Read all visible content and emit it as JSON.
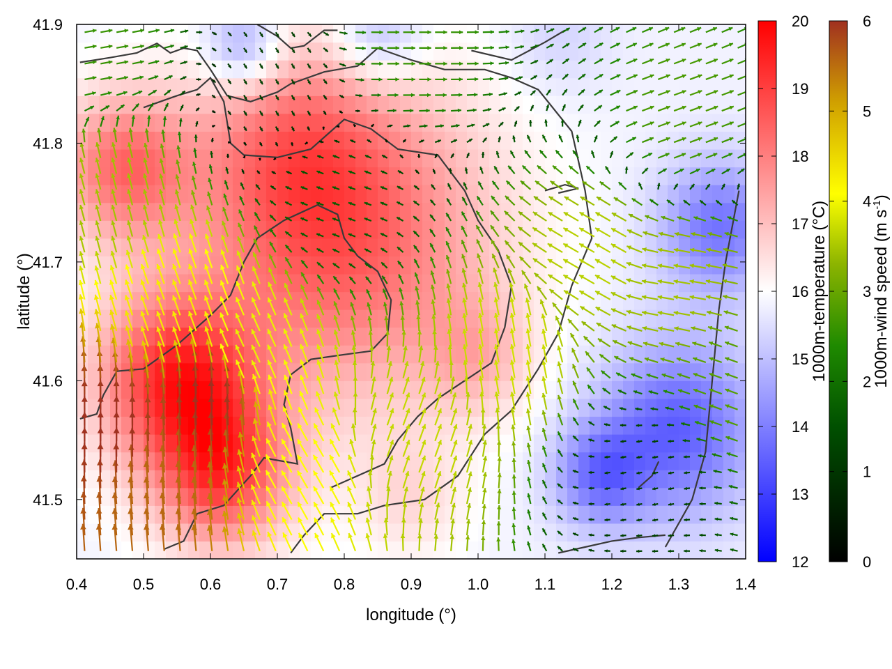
{
  "chart_data": {
    "type": "heatmap",
    "xlabel": "longitude (°)",
    "ylabel": "latitude (°)",
    "xlim": [
      0.4,
      1.4
    ],
    "ylim": [
      41.45,
      41.9
    ],
    "x_ticks": [
      "0.4",
      "0.5",
      "0.6",
      "0.7",
      "0.8",
      "0.9",
      "1.0",
      "1.1",
      "1.2",
      "1.3",
      "1.4"
    ],
    "y_ticks": [
      "41.5",
      "41.6",
      "41.7",
      "41.8",
      "41.9"
    ],
    "temperature_colorbar": {
      "label": "1000m-temperature (°C)",
      "range": [
        12,
        20
      ],
      "ticks": [
        "12",
        "13",
        "14",
        "15",
        "16",
        "17",
        "18",
        "19",
        "20"
      ],
      "colors": [
        "#0000ff",
        "#ffffff",
        "#ff0000"
      ]
    },
    "windspeed_colorbar": {
      "label_main": "1000m-wind speed (m s",
      "label_sup": "-1",
      "label_end": ")",
      "range": [
        0,
        6
      ],
      "ticks": [
        "0",
        "1",
        "2",
        "3",
        "4",
        "5",
        "6"
      ],
      "colors": [
        "#000000",
        "#005000",
        "#1f8a00",
        "#8cb400",
        "#ffff00",
        "#d0a000",
        "#a03020"
      ]
    },
    "temperature_field": [
      {
        "lon": 0.8,
        "lat": 41.72,
        "temp": 18.5,
        "spread": 0.22
      },
      {
        "lon": 0.55,
        "lat": 41.6,
        "temp": 19.2,
        "spread": 0.12
      },
      {
        "lon": 0.47,
        "lat": 41.78,
        "temp": 18.2,
        "spread": 0.1
      },
      {
        "lon": 0.62,
        "lat": 41.52,
        "temp": 18.6,
        "spread": 0.1
      },
      {
        "lon": 0.72,
        "lat": 41.8,
        "temp": 17.2,
        "spread": 0.14
      },
      {
        "lon": 1.0,
        "lat": 41.62,
        "temp": 16.8,
        "spread": 0.08
      },
      {
        "lon": 0.9,
        "lat": 41.5,
        "temp": 16.5,
        "spread": 0.08
      },
      {
        "lon": 0.65,
        "lat": 41.88,
        "temp": 14.2,
        "spread": 0.06
      },
      {
        "lon": 0.85,
        "lat": 41.89,
        "temp": 14.6,
        "spread": 0.07
      },
      {
        "lon": 1.3,
        "lat": 41.56,
        "temp": 13.5,
        "spread": 0.12
      },
      {
        "lon": 1.36,
        "lat": 41.73,
        "temp": 13.8,
        "spread": 0.09
      },
      {
        "lon": 1.18,
        "lat": 41.52,
        "temp": 14.0,
        "spread": 0.07
      },
      {
        "lon": 1.12,
        "lat": 41.89,
        "temp": 15.3,
        "spread": 0.08
      }
    ],
    "wind_field": [
      {
        "lon": 0.45,
        "lat": 41.55,
        "speed": 6.0,
        "dir_deg": 90
      },
      {
        "lon": 0.52,
        "lat": 41.5,
        "speed": 5.5,
        "dir_deg": 95
      },
      {
        "lon": 0.6,
        "lat": 41.58,
        "speed": 6.0,
        "dir_deg": 92
      },
      {
        "lon": 0.55,
        "lat": 41.65,
        "speed": 4.2,
        "dir_deg": 110
      },
      {
        "lon": 0.66,
        "lat": 41.62,
        "speed": 3.8,
        "dir_deg": 115
      },
      {
        "lon": 0.45,
        "lat": 41.75,
        "speed": 3.2,
        "dir_deg": 105
      },
      {
        "lon": 0.75,
        "lat": 41.52,
        "speed": 4.0,
        "dir_deg": 120
      },
      {
        "lon": 0.9,
        "lat": 41.55,
        "speed": 3.5,
        "dir_deg": 70
      },
      {
        "lon": 1.05,
        "lat": 41.62,
        "speed": 3.6,
        "dir_deg": 100
      },
      {
        "lon": 1.18,
        "lat": 41.7,
        "speed": 3.4,
        "dir_deg": 150
      },
      {
        "lon": 1.3,
        "lat": 41.68,
        "speed": 3.2,
        "dir_deg": 170
      },
      {
        "lon": 1.3,
        "lat": 41.82,
        "speed": 2.4,
        "dir_deg": 20
      },
      {
        "lon": 0.9,
        "lat": 41.88,
        "speed": 2.2,
        "dir_deg": 0
      },
      {
        "lon": 0.7,
        "lat": 41.85,
        "speed": 0.8,
        "dir_deg": 300
      },
      {
        "lon": 0.8,
        "lat": 41.75,
        "speed": 1.2,
        "dir_deg": 160
      },
      {
        "lon": 1.25,
        "lat": 41.52,
        "speed": 0.8,
        "dir_deg": 190
      },
      {
        "lon": 1.4,
        "lat": 41.6,
        "speed": 2.5,
        "dir_deg": 160
      },
      {
        "lon": 0.42,
        "lat": 41.88,
        "speed": 2.2,
        "dir_deg": 10
      }
    ],
    "contours": [
      [
        [
          0.405,
          41.568
        ],
        [
          0.43,
          41.572
        ],
        [
          0.44,
          41.588
        ],
        [
          0.46,
          41.608
        ],
        [
          0.5,
          41.61
        ],
        [
          0.55,
          41.63
        ],
        [
          0.6,
          41.655
        ],
        [
          0.63,
          41.672
        ],
        [
          0.65,
          41.7
        ],
        [
          0.67,
          41.72
        ],
        [
          0.71,
          41.735
        ],
        [
          0.76,
          41.748
        ],
        [
          0.79,
          41.74
        ],
        [
          0.8,
          41.72
        ],
        [
          0.82,
          41.705
        ],
        [
          0.85,
          41.692
        ],
        [
          0.87,
          41.668
        ],
        [
          0.865,
          41.64
        ],
        [
          0.84,
          41.625
        ],
        [
          0.8,
          41.622
        ],
        [
          0.75,
          41.618
        ],
        [
          0.72,
          41.605
        ],
        [
          0.71,
          41.58
        ],
        [
          0.72,
          41.56
        ],
        [
          0.73,
          41.53
        ],
        [
          0.68,
          41.535
        ],
        [
          0.66,
          41.52
        ],
        [
          0.62,
          41.495
        ],
        [
          0.58,
          41.488
        ],
        [
          0.56,
          41.465
        ],
        [
          0.53,
          41.458
        ]
      ],
      [
        [
          0.405,
          41.868
        ],
        [
          0.45,
          41.872
        ],
        [
          0.49,
          41.876
        ],
        [
          0.52,
          41.884
        ],
        [
          0.54,
          41.876
        ],
        [
          0.56,
          41.88
        ],
        [
          0.58,
          41.878
        ],
        [
          0.6,
          41.862
        ],
        [
          0.625,
          41.84
        ],
        [
          0.66,
          41.835
        ],
        [
          0.7,
          41.843
        ],
        [
          0.72,
          41.85
        ],
        [
          0.77,
          41.86
        ],
        [
          0.82,
          41.865
        ],
        [
          0.85,
          41.88
        ],
        [
          0.9,
          41.87
        ],
        [
          0.95,
          41.862
        ],
        [
          1.01,
          41.862
        ],
        [
          1.05,
          41.855
        ],
        [
          1.09,
          41.845
        ],
        [
          1.14,
          41.81
        ],
        [
          1.16,
          41.76
        ],
        [
          1.17,
          41.72
        ],
        [
          1.14,
          41.68
        ],
        [
          1.12,
          41.64
        ],
        [
          1.09,
          41.61
        ],
        [
          1.05,
          41.575
        ],
        [
          1.01,
          41.555
        ],
        [
          0.97,
          41.52
        ],
        [
          0.92,
          41.5
        ],
        [
          0.86,
          41.495
        ],
        [
          0.82,
          41.488
        ],
        [
          0.77,
          41.488
        ],
        [
          0.74,
          41.47
        ],
        [
          0.72,
          41.455
        ]
      ],
      [
        [
          0.5,
          41.83
        ],
        [
          0.55,
          41.84
        ],
        [
          0.58,
          41.845
        ],
        [
          0.6,
          41.855
        ],
        [
          0.62,
          41.835
        ],
        [
          0.63,
          41.8
        ],
        [
          0.65,
          41.79
        ],
        [
          0.7,
          41.788
        ],
        [
          0.75,
          41.795
        ],
        [
          0.8,
          41.82
        ],
        [
          0.84,
          41.812
        ],
        [
          0.88,
          41.795
        ],
        [
          0.94,
          41.79
        ],
        [
          0.96,
          41.775
        ],
        [
          0.98,
          41.76
        ],
        [
          1.0,
          41.735
        ],
        [
          1.03,
          41.71
        ],
        [
          1.05,
          41.68
        ],
        [
          1.04,
          41.645
        ],
        [
          1.02,
          41.615
        ],
        [
          0.98,
          41.6
        ],
        [
          0.94,
          41.585
        ],
        [
          0.91,
          41.57
        ],
        [
          0.88,
          41.55
        ],
        [
          0.86,
          41.53
        ],
        [
          0.82,
          41.52
        ],
        [
          0.78,
          41.51
        ]
      ],
      [
        [
          0.67,
          41.9
        ],
        [
          0.7,
          41.89
        ],
        [
          0.72,
          41.88
        ],
        [
          0.74,
          41.882
        ],
        [
          0.77,
          41.895
        ],
        [
          0.79,
          41.895
        ]
      ],
      [
        [
          0.99,
          41.878
        ],
        [
          1.05,
          41.87
        ],
        [
          1.1,
          41.885
        ],
        [
          1.13,
          41.895
        ]
      ],
      [
        [
          1.1,
          41.76
        ],
        [
          1.13,
          41.765
        ],
        [
          1.15,
          41.762
        ],
        [
          1.12,
          41.758
        ]
      ],
      [
        [
          1.24,
          41.51
        ],
        [
          1.26,
          41.52
        ],
        [
          1.27,
          41.532
        ],
        [
          1.26,
          41.52
        ],
        [
          1.24,
          41.51
        ]
      ],
      [
        [
          1.28,
          41.46
        ],
        [
          1.3,
          41.48
        ],
        [
          1.32,
          41.5
        ],
        [
          1.34,
          41.54
        ],
        [
          1.35,
          41.6
        ],
        [
          1.36,
          41.66
        ],
        [
          1.37,
          41.7
        ],
        [
          1.38,
          41.73
        ],
        [
          1.39,
          41.76
        ]
      ],
      [
        [
          1.12,
          41.455
        ],
        [
          1.16,
          41.46
        ],
        [
          1.2,
          41.465
        ],
        [
          1.24,
          41.468
        ],
        [
          1.28,
          41.47
        ]
      ]
    ]
  }
}
